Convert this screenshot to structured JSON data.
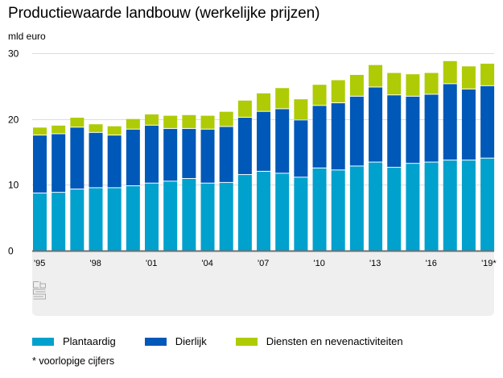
{
  "title": "Productiewaarde landbouw (werkelijke prijzen)",
  "unit_label": "mld euro",
  "footnote": "* voorlopige cijfers",
  "logo": "cbs-logo-icon",
  "chart_data": {
    "type": "bar",
    "stacked": true,
    "title": "Productiewaarde landbouw (werkelijke prijzen)",
    "ylabel": "mld euro",
    "xlabel": "",
    "ylim": [
      0,
      30
    ],
    "yticks": [
      0,
      10,
      20,
      30
    ],
    "grid": true,
    "legend_position": "bottom",
    "categories": [
      "1995",
      "1996",
      "1997",
      "1998",
      "1999",
      "2000",
      "2001",
      "2002",
      "2003",
      "2004",
      "2005",
      "2006",
      "2007",
      "2008",
      "2009",
      "2010",
      "2011",
      "2012",
      "2013",
      "2014",
      "2015",
      "2016",
      "2017",
      "2018",
      "2019*"
    ],
    "xtick_labels": [
      {
        "index": 0,
        "label": "'95"
      },
      {
        "index": 3,
        "label": "'98"
      },
      {
        "index": 6,
        "label": "'01"
      },
      {
        "index": 9,
        "label": "'04"
      },
      {
        "index": 12,
        "label": "'07"
      },
      {
        "index": 15,
        "label": "'10"
      },
      {
        "index": 18,
        "label": "'13"
      },
      {
        "index": 21,
        "label": "'16"
      },
      {
        "index": 24,
        "label": "'19*"
      }
    ],
    "series": [
      {
        "name": "Plantaardig",
        "color": "#00a1cd",
        "values": [
          8.7,
          8.8,
          9.3,
          9.5,
          9.5,
          9.8,
          10.2,
          10.5,
          10.9,
          10.2,
          10.3,
          11.5,
          12.0,
          11.7,
          11.1,
          12.5,
          12.2,
          12.8,
          13.4,
          12.6,
          13.2,
          13.4,
          13.7,
          13.7,
          14.0
        ]
      },
      {
        "name": "Dierlijk",
        "color": "#0058b8",
        "values": [
          8.8,
          8.9,
          9.4,
          8.4,
          8.0,
          8.6,
          8.8,
          8.0,
          7.6,
          8.2,
          8.5,
          8.7,
          9.1,
          9.8,
          8.7,
          9.5,
          10.2,
          10.6,
          11.4,
          11.0,
          10.2,
          10.3,
          11.6,
          10.8,
          11.0
        ]
      },
      {
        "name": "Diensten en nevenactiviteiten",
        "color": "#afcb05",
        "values": [
          1.2,
          1.3,
          1.5,
          1.3,
          1.4,
          1.6,
          1.7,
          2.0,
          2.1,
          2.1,
          2.3,
          2.6,
          2.8,
          3.2,
          3.2,
          3.2,
          3.5,
          3.3,
          3.4,
          3.4,
          3.4,
          3.3,
          3.5,
          3.5,
          3.4
        ]
      }
    ]
  }
}
